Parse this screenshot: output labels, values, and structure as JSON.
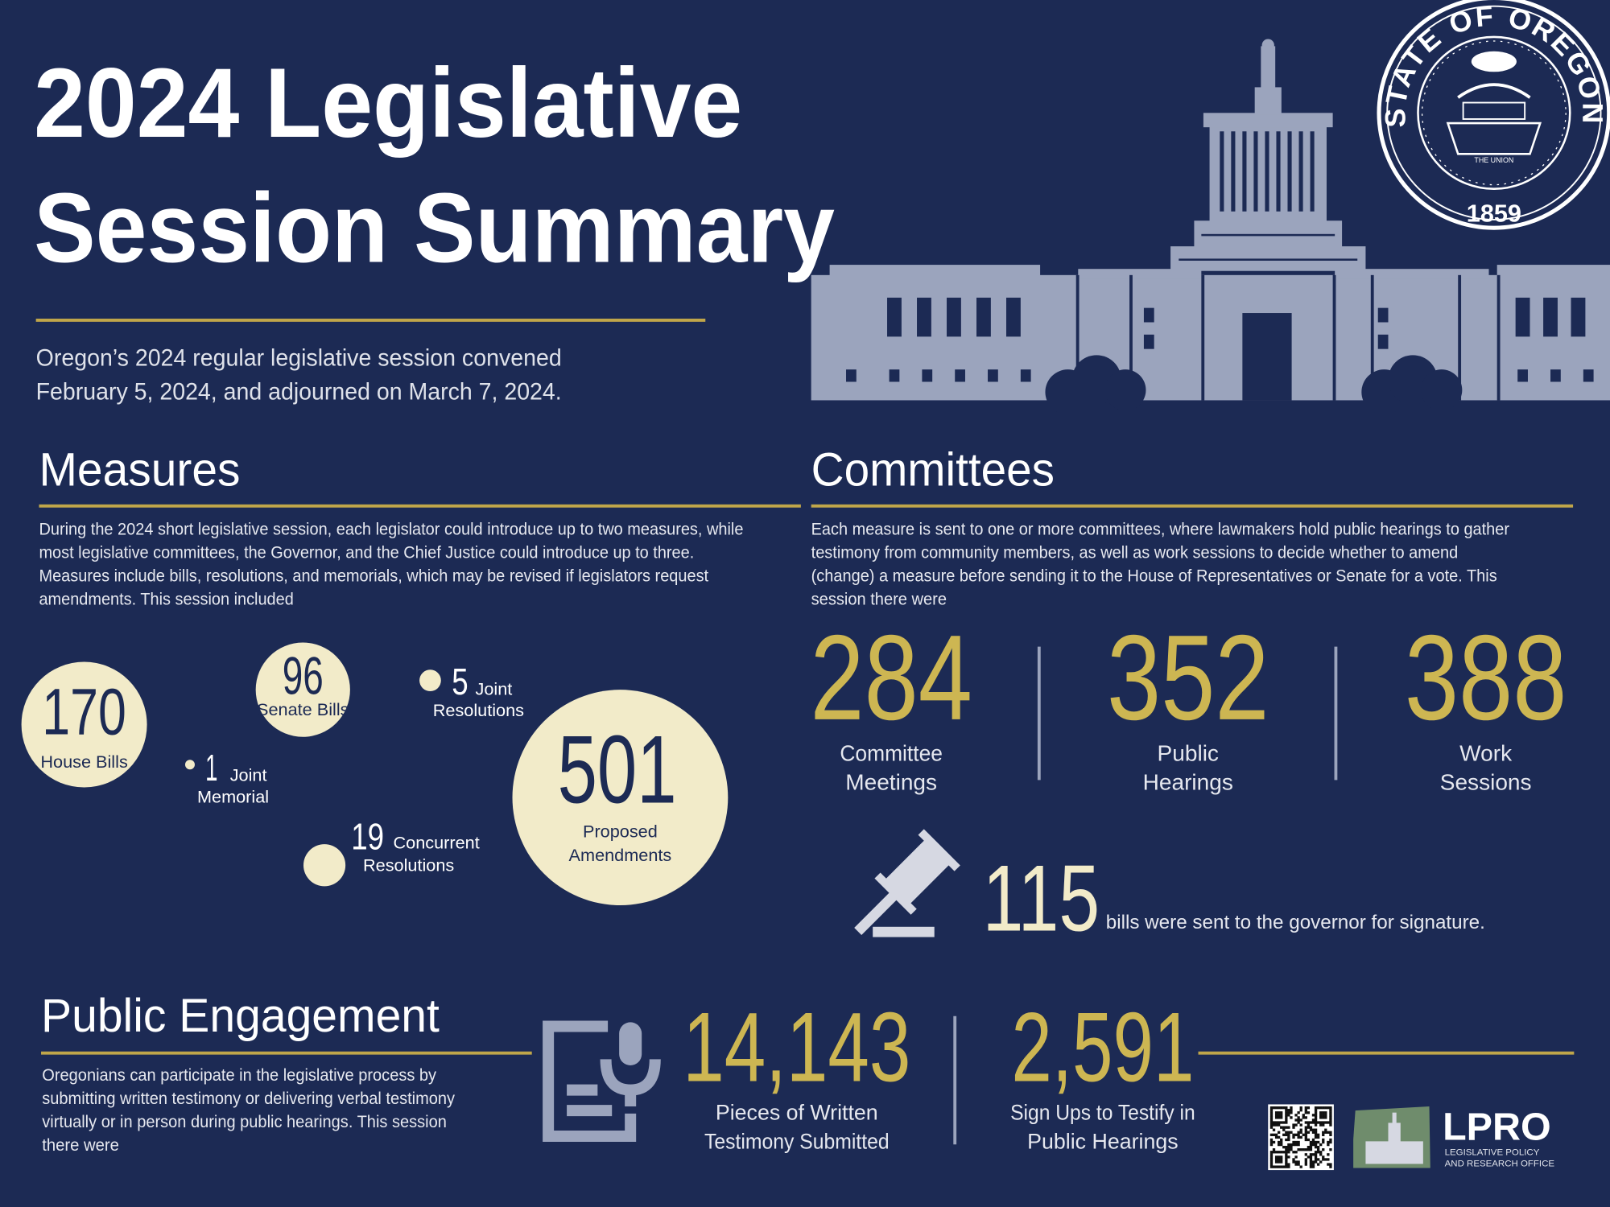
{
  "header": {
    "title_lines": [
      "2024 Legislative",
      "Session Summary"
    ],
    "intro_lines": [
      "Oregon’s 2024 regular legislative session convened",
      "February 5, 2024, and adjourned on March 7, 2024."
    ]
  },
  "seal": {
    "top": "STATE OF OREGON",
    "year": "1859",
    "banner": "THE UNION"
  },
  "measures": {
    "heading": "Measures",
    "text_lines": [
      "During the 2024 short legislative session, each legislator could introduce up to two measures, while",
      "most legislative committees, the Governor, and the Chief Justice could introduce up to three.",
      "Measures include bills, resolutions, and memorials, which may be revised if legislators request",
      "amendments. This session included"
    ],
    "items": [
      {
        "value": 170,
        "label_lines": [
          "House Bills"
        ]
      },
      {
        "value": 96,
        "label_lines": [
          "Senate Bills"
        ]
      },
      {
        "value": 5,
        "label_lines": [
          "Joint",
          "Resolutions"
        ]
      },
      {
        "value": 1,
        "label_lines": [
          "Joint",
          "Memorial"
        ]
      },
      {
        "value": 19,
        "label_lines": [
          "Concurrent",
          "Resolutions"
        ]
      },
      {
        "value": 501,
        "label_lines": [
          "Proposed",
          "Amendments"
        ]
      }
    ]
  },
  "committees": {
    "heading": "Committees",
    "text_lines": [
      "Each measure is sent to one or more committees, where lawmakers hold public hearings to gather",
      "testimony from community members, as well as work sessions to decide whether to amend",
      "(change) a measure before sending it to the House of Representatives or Senate for a vote. This",
      "session there were"
    ],
    "stats": [
      {
        "value": 284,
        "label_lines": [
          "Committee",
          "Meetings"
        ]
      },
      {
        "value": 352,
        "label_lines": [
          "Public",
          "Hearings"
        ]
      },
      {
        "value": 388,
        "label_lines": [
          "Work",
          "Sessions"
        ]
      }
    ],
    "governor": {
      "value": 115,
      "text": "bills were sent to the governor for signature."
    }
  },
  "engagement": {
    "heading": "Public Engagement",
    "text_lines": [
      "Oregonians can participate in the legislative process by",
      "submitting written testimony or delivering verbal testimony",
      "virtually or in person during public hearings. This session",
      "there were"
    ],
    "stats": [
      {
        "value": "14,143",
        "label_lines": [
          "Pieces of Written",
          "Testimony Submitted"
        ]
      },
      {
        "value": "2,591",
        "label_lines": [
          "Sign Ups to Testify in",
          "Public Hearings"
        ]
      }
    ]
  },
  "footer": {
    "logo": "LPRO",
    "logo_sub_lines": [
      "LEGISLATIVE POLICY",
      "AND RESEARCH OFFICE"
    ]
  }
}
